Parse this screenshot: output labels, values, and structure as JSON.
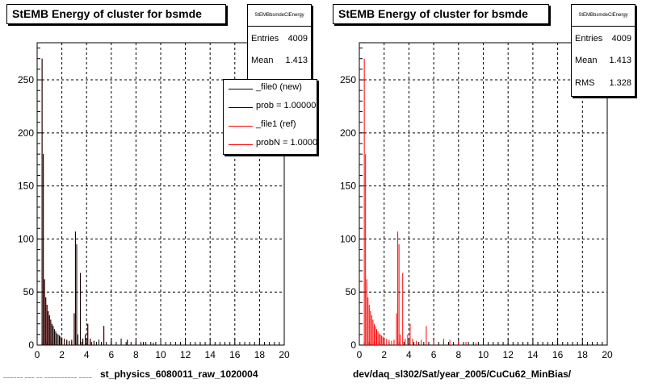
{
  "colors": {
    "new": "#000000",
    "ref": "#ff0000",
    "grid": "#000000"
  },
  "left_panel": {
    "title": "StEMB Energy of cluster for bsmde",
    "stats": {
      "name": "StEMBbsmdeClEnergy",
      "rows": [
        {
          "label": "Entries",
          "value": "4009"
        },
        {
          "label": "Mean",
          "value": "1.413"
        }
      ]
    },
    "legend": [
      {
        "label": "_file0 (new)",
        "color": "#000000"
      },
      {
        "label": "prob = 1.000000",
        "color": "#000000"
      },
      {
        "label": "_file1 (ref)",
        "color": "#ff0000"
      },
      {
        "label": "probN = 1.000000",
        "color": "#ff0000"
      }
    ],
    "xtitle": "st_physics_6080011_raw_1020004"
  },
  "right_panel": {
    "title": "StEMB Energy of cluster for bsmde",
    "stats": {
      "name": "StEMBbsmdeClEnergy",
      "rows": [
        {
          "label": "Entries",
          "value": "4009"
        },
        {
          "label": "Mean",
          "value": "1.413"
        },
        {
          "label": "RMS",
          "value": "1.328"
        }
      ]
    },
    "xtitle": "dev/daq_sl302/Sat/year_2005/CuCu62_MinBias/"
  },
  "footer_text": "~~~~~~ ~~~ ~~ ~~~~~~~~~~ ~~~~",
  "chart_data": [
    {
      "type": "histogram",
      "title": "StEMB Energy of cluster for bsmde",
      "xlabel": "st_physics_6080011_raw_1020004",
      "ylabel": "",
      "xlim": [
        0,
        20
      ],
      "ylim": [
        0,
        285
      ],
      "xticks": [
        0,
        2,
        4,
        6,
        8,
        10,
        12,
        14,
        16,
        18,
        20
      ],
      "yticks": [
        0,
        50,
        100,
        150,
        200,
        250
      ],
      "grid": true,
      "legend_position": "top-right",
      "series": [
        {
          "name": "_file0 (new)",
          "color": "#000000",
          "points": [
            [
              0.4,
              270
            ],
            [
              0.5,
              180
            ],
            [
              0.6,
              62
            ],
            [
              0.7,
              45
            ],
            [
              0.8,
              38
            ],
            [
              0.9,
              32
            ],
            [
              1.0,
              28
            ],
            [
              1.1,
              24
            ],
            [
              1.2,
              20
            ],
            [
              1.3,
              18
            ],
            [
              1.4,
              15
            ],
            [
              1.5,
              13
            ],
            [
              1.6,
              11
            ],
            [
              1.7,
              10
            ],
            [
              1.8,
              9
            ],
            [
              1.9,
              8
            ],
            [
              2.0,
              7
            ],
            [
              2.2,
              6
            ],
            [
              2.4,
              5
            ],
            [
              2.6,
              4
            ],
            [
              2.8,
              5
            ],
            [
              3.0,
              30
            ],
            [
              3.1,
              107
            ],
            [
              3.2,
              95
            ],
            [
              3.3,
              10
            ],
            [
              3.5,
              68
            ],
            [
              3.7,
              6
            ],
            [
              3.9,
              10
            ],
            [
              4.1,
              20
            ],
            [
              4.3,
              6
            ],
            [
              4.6,
              4
            ],
            [
              5.0,
              5
            ],
            [
              5.4,
              18
            ],
            [
              6.0,
              4
            ],
            [
              6.8,
              6
            ],
            [
              7.3,
              5
            ],
            [
              8.0,
              4
            ],
            [
              8.6,
              3
            ],
            [
              9.4,
              2
            ]
          ]
        },
        {
          "name": "_file1 (ref)",
          "color": "#ff0000",
          "points": [
            [
              0.4,
              270
            ],
            [
              0.5,
              180
            ],
            [
              0.6,
              62
            ],
            [
              0.7,
              45
            ],
            [
              0.8,
              38
            ],
            [
              0.9,
              32
            ],
            [
              1.0,
              28
            ],
            [
              1.1,
              24
            ],
            [
              1.2,
              20
            ],
            [
              1.3,
              18
            ],
            [
              1.4,
              15
            ],
            [
              1.5,
              13
            ],
            [
              1.6,
              11
            ],
            [
              1.7,
              10
            ],
            [
              1.8,
              9
            ],
            [
              1.9,
              8
            ],
            [
              2.0,
              7
            ],
            [
              2.2,
              6
            ],
            [
              2.4,
              5
            ],
            [
              2.6,
              4
            ],
            [
              2.8,
              5
            ],
            [
              3.0,
              30
            ],
            [
              3.1,
              107
            ],
            [
              3.2,
              95
            ],
            [
              3.3,
              10
            ],
            [
              3.5,
              68
            ],
            [
              3.7,
              6
            ],
            [
              3.9,
              10
            ],
            [
              4.1,
              20
            ],
            [
              4.3,
              6
            ],
            [
              4.6,
              4
            ],
            [
              5.0,
              5
            ],
            [
              5.4,
              18
            ],
            [
              6.0,
              4
            ],
            [
              6.8,
              6
            ],
            [
              7.3,
              5
            ],
            [
              8.0,
              4
            ],
            [
              8.6,
              3
            ],
            [
              9.4,
              2
            ]
          ]
        }
      ]
    },
    {
      "type": "histogram",
      "title": "StEMB Energy of cluster for bsmde",
      "xlabel": "dev/daq_sl302/Sat/year_2005/CuCu62_MinBias/",
      "ylabel": "",
      "xlim": [
        0,
        20
      ],
      "ylim": [
        0,
        285
      ],
      "xticks": [
        0,
        2,
        4,
        6,
        8,
        10,
        12,
        14,
        16,
        18,
        20
      ],
      "yticks": [
        0,
        50,
        100,
        150,
        200,
        250
      ],
      "grid": true,
      "series": [
        {
          "color": "#ff0000",
          "points": [
            [
              0.4,
              270
            ],
            [
              0.5,
              180
            ],
            [
              0.6,
              62
            ],
            [
              0.7,
              45
            ],
            [
              0.8,
              38
            ],
            [
              0.9,
              32
            ],
            [
              1.0,
              28
            ],
            [
              1.1,
              24
            ],
            [
              1.2,
              20
            ],
            [
              1.3,
              18
            ],
            [
              1.4,
              15
            ],
            [
              1.5,
              13
            ],
            [
              1.6,
              11
            ],
            [
              1.7,
              10
            ],
            [
              1.8,
              9
            ],
            [
              1.9,
              8
            ],
            [
              2.0,
              7
            ],
            [
              2.2,
              6
            ],
            [
              2.4,
              5
            ],
            [
              2.6,
              4
            ],
            [
              2.8,
              5
            ],
            [
              3.0,
              30
            ],
            [
              3.1,
              107
            ],
            [
              3.2,
              95
            ],
            [
              3.3,
              10
            ],
            [
              3.5,
              68
            ],
            [
              3.7,
              6
            ],
            [
              3.9,
              10
            ],
            [
              4.1,
              20
            ],
            [
              4.3,
              6
            ],
            [
              4.6,
              4
            ],
            [
              5.0,
              5
            ],
            [
              5.4,
              18
            ],
            [
              6.0,
              4
            ],
            [
              6.8,
              6
            ],
            [
              7.3,
              5
            ],
            [
              8.0,
              4
            ],
            [
              8.6,
              3
            ],
            [
              9.4,
              2
            ]
          ]
        }
      ]
    }
  ]
}
